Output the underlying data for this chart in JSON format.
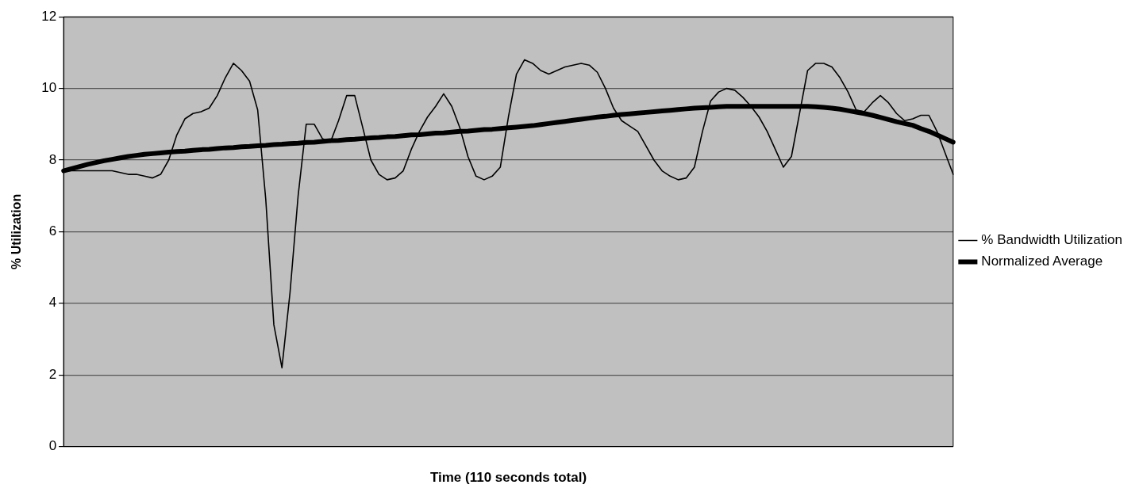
{
  "chart_data": {
    "type": "line",
    "xlabel": "Time (110 seconds total)",
    "ylabel": "% Utilization",
    "categories": [
      null,
      null,
      null,
      null,
      null,
      null,
      null,
      null,
      null,
      null,
      null,
      null,
      null,
      null,
      null,
      null,
      null,
      null,
      null,
      null,
      null,
      null,
      null,
      null,
      null,
      null,
      null,
      null,
      null,
      null,
      null,
      null,
      null,
      null,
      null,
      null,
      null,
      null,
      null,
      null,
      null,
      null,
      null,
      null,
      null,
      null,
      null,
      null,
      null,
      null,
      null,
      null,
      null,
      null,
      null,
      null,
      null,
      null,
      null,
      null,
      null,
      null,
      null,
      null,
      null,
      null,
      null,
      null,
      null,
      null,
      null,
      null,
      null,
      null,
      null,
      null,
      null,
      null,
      null,
      null,
      null,
      null,
      null,
      null,
      null,
      null,
      null,
      null,
      null,
      null,
      null,
      null,
      null,
      null,
      null,
      null,
      null,
      null,
      null,
      null,
      null,
      null,
      null,
      null,
      null,
      null,
      null,
      null,
      null,
      null,
      null
    ],
    "ylim": [
      0,
      12
    ],
    "yticks": [
      0,
      2,
      4,
      6,
      8,
      10,
      12
    ],
    "tick_labels": "y",
    "grid": "y",
    "legend": "right",
    "marker": "none",
    "line_style": "solid",
    "series": [
      {
        "name": "% Bandwidth Utilization",
        "color": "#000000",
        "values": [
          7.7,
          7.7,
          7.7,
          7.7,
          7.7,
          7.7,
          7.7,
          7.65,
          7.6,
          7.6,
          7.55,
          7.5,
          7.6,
          8.0,
          8.7,
          9.15,
          9.3,
          9.35,
          9.45,
          9.8,
          10.3,
          10.7,
          10.5,
          10.2,
          9.4,
          6.9,
          3.4,
          2.2,
          4.3,
          7.0,
          9.0,
          9.0,
          8.6,
          8.5,
          9.1,
          9.8,
          9.8,
          8.9,
          8.0,
          7.6,
          7.45,
          7.5,
          7.7,
          8.3,
          8.8,
          9.2,
          9.5,
          9.85,
          9.5,
          8.9,
          8.1,
          7.55,
          7.45,
          7.55,
          7.8,
          9.2,
          10.4,
          10.8,
          10.7,
          10.5,
          10.4,
          10.5,
          10.6,
          10.65,
          10.7,
          10.65,
          10.45,
          10.0,
          9.45,
          9.1,
          8.95,
          8.8,
          8.4,
          8.0,
          7.7,
          7.55,
          7.45,
          7.5,
          7.8,
          8.8,
          9.65,
          9.9,
          10.0,
          9.95,
          9.75,
          9.5,
          9.2,
          8.8,
          8.3,
          7.8,
          8.1,
          9.3,
          10.5,
          10.7,
          10.7,
          10.6,
          10.3,
          9.9,
          9.4,
          9.35,
          9.6,
          9.8,
          9.6,
          9.3,
          9.1,
          9.15,
          9.25,
          9.25,
          8.8,
          8.2,
          7.6
        ]
      },
      {
        "name": "Normalized Average",
        "color": "#000000",
        "values": [
          7.7,
          7.76,
          7.82,
          7.88,
          7.93,
          7.98,
          8.02,
          8.06,
          8.1,
          8.13,
          8.16,
          8.18,
          8.2,
          8.22,
          8.24,
          8.25,
          8.27,
          8.29,
          8.3,
          8.32,
          8.34,
          8.35,
          8.37,
          8.38,
          8.4,
          8.41,
          8.43,
          8.44,
          8.46,
          8.47,
          8.49,
          8.5,
          8.52,
          8.54,
          8.55,
          8.57,
          8.58,
          8.6,
          8.62,
          8.63,
          8.65,
          8.66,
          8.68,
          8.7,
          8.71,
          8.73,
          8.75,
          8.76,
          8.78,
          8.8,
          8.81,
          8.83,
          8.85,
          8.86,
          8.88,
          8.9,
          8.92,
          8.94,
          8.96,
          8.99,
          9.02,
          9.05,
          9.08,
          9.11,
          9.14,
          9.17,
          9.2,
          9.22,
          9.25,
          9.27,
          9.29,
          9.31,
          9.33,
          9.35,
          9.37,
          9.39,
          9.41,
          9.43,
          9.45,
          9.46,
          9.47,
          9.49,
          9.5,
          9.5,
          9.5,
          9.5,
          9.5,
          9.5,
          9.5,
          9.5,
          9.5,
          9.5,
          9.5,
          9.49,
          9.47,
          9.45,
          9.42,
          9.38,
          9.34,
          9.3,
          9.25,
          9.19,
          9.13,
          9.07,
          9.02,
          8.97,
          8.88,
          8.8,
          8.7,
          8.6,
          8.5
        ]
      }
    ]
  }
}
